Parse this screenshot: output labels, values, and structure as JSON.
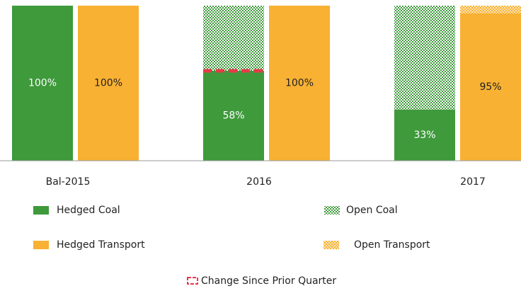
{
  "chart_data": {
    "type": "bar",
    "categories": [
      "Bal-2015",
      "2016",
      "2017"
    ],
    "series": [
      {
        "name": "Hedged Coal",
        "color": "#3e9a3b",
        "values": [
          100,
          58,
          33
        ],
        "value_labels": [
          "100%",
          "58%",
          "33%"
        ]
      },
      {
        "name": "Open Coal",
        "color": "#3e9a3b",
        "values": [
          0,
          42,
          67
        ]
      },
      {
        "name": "Hedged Transport",
        "color": "#f8b133",
        "values": [
          100,
          100,
          95
        ],
        "value_labels": [
          "100%",
          "100%",
          "95%"
        ]
      },
      {
        "name": "Open Transport",
        "color": "#f8b133",
        "values": [
          0,
          0,
          5
        ]
      }
    ],
    "marker": {
      "name": "Change Since Prior Quarter",
      "color": "#e8394a",
      "values": [
        null,
        58,
        null
      ]
    },
    "ylim": [
      0,
      100
    ]
  }
}
